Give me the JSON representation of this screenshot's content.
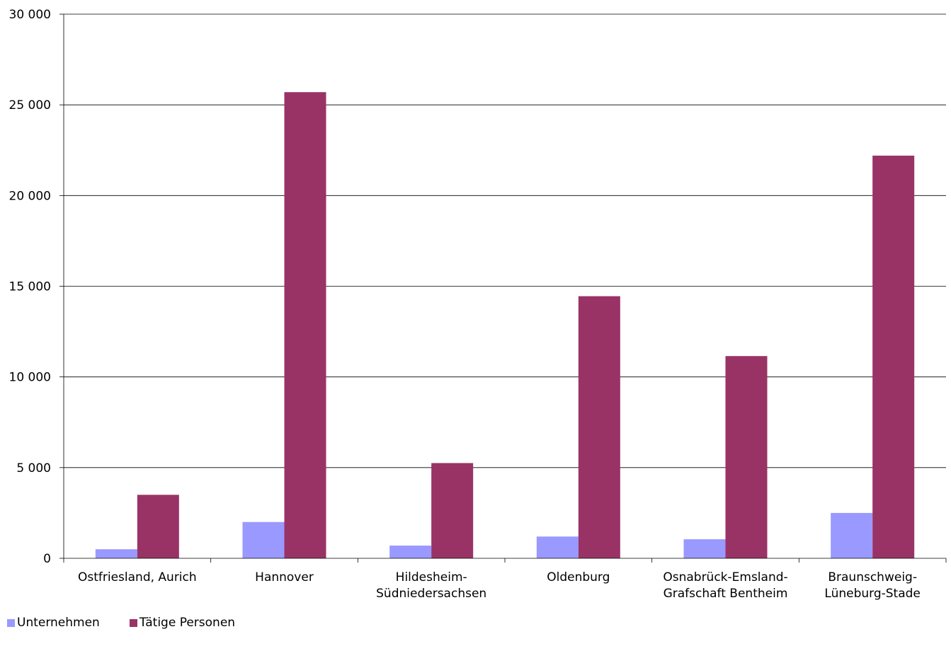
{
  "chart_data": {
    "type": "bar",
    "title": "",
    "xlabel": "",
    "ylabel": "",
    "ylim": [
      0,
      30000
    ],
    "yticks": [
      0,
      5000,
      10000,
      15000,
      20000,
      25000,
      30000
    ],
    "ytick_labels": [
      "0",
      "5 000",
      "10 000",
      "15 000",
      "20 000",
      "25 000",
      "30 000"
    ],
    "categories": [
      [
        "Ostfriesland, Aurich"
      ],
      [
        "Hannover"
      ],
      [
        "Hildesheim-",
        "Südniedersachsen"
      ],
      [
        "Oldenburg"
      ],
      [
        "Osnabrück-Emsland-",
        "Grafschaft Bentheim"
      ],
      [
        "Braunschweig-",
        "Lüneburg-Stade"
      ]
    ],
    "series": [
      {
        "name": "Unternehmen",
        "color": "#9999ff",
        "values": [
          500,
          2000,
          700,
          1200,
          1050,
          2500
        ]
      },
      {
        "name": "Tätige Personen",
        "color": "#993366",
        "values": [
          3500,
          25700,
          5250,
          14450,
          11150,
          22200
        ]
      }
    ],
    "grid": true,
    "legend": "bottom-left"
  }
}
